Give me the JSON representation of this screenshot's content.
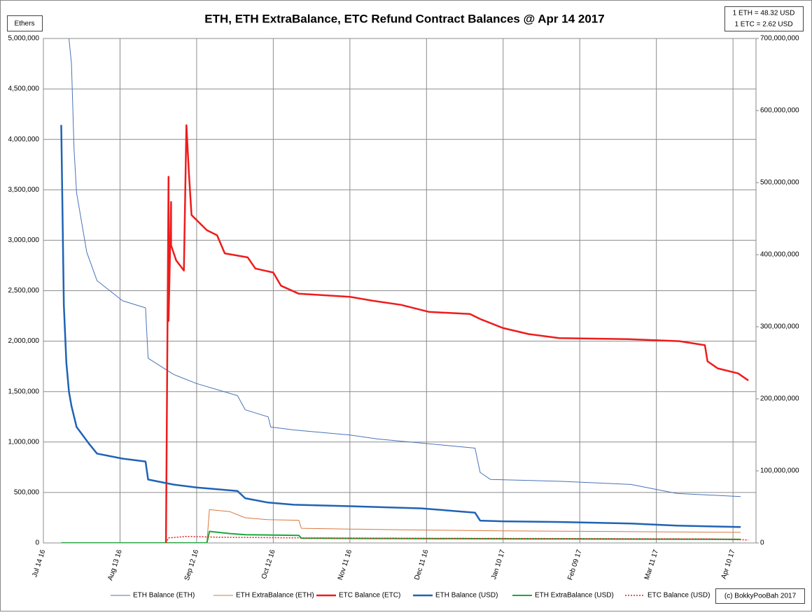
{
  "chart_data": {
    "type": "line",
    "title": "ETH, ETH ExtraBalance, ETC Refund Contract Balances @ Apr 14 2017",
    "y_label": "Ethers",
    "annotations": [
      "1 ETH = 48.32 USD",
      "1 ETC = 2.62 USD"
    ],
    "credit": "(c) BokkyPooBah 2017",
    "grid": true,
    "legend": "bottom",
    "xlim": [
      "2016-07-14",
      "2017-04-19"
    ],
    "xticks": [
      {
        "value": "2016-07-14",
        "label": "Jul 14 16"
      },
      {
        "value": "2016-08-13",
        "label": "Aug 13 16"
      },
      {
        "value": "2016-09-12",
        "label": "Sep 12 16"
      },
      {
        "value": "2016-10-12",
        "label": "Oct 12 16"
      },
      {
        "value": "2016-11-11",
        "label": "Nov 11 16"
      },
      {
        "value": "2016-12-11",
        "label": "Dec 11 16"
      },
      {
        "value": "2017-01-10",
        "label": "Jan 10 17"
      },
      {
        "value": "2017-02-09",
        "label": "Feb 09 17"
      },
      {
        "value": "2017-03-11",
        "label": "Mar 11 17"
      },
      {
        "value": "2017-04-10",
        "label": "Apr 10 17"
      }
    ],
    "ylim": [
      0,
      5000000
    ],
    "yticks": [
      0,
      {
        "value": 500000,
        "label": "500,000"
      },
      {
        "value": 1000000,
        "label": "1,000,000"
      },
      {
        "value": 1500000,
        "label": "1,500,000"
      },
      {
        "value": 2000000,
        "label": "2,000,000"
      },
      {
        "value": 2500000,
        "label": "2,500,000"
      },
      {
        "value": 3000000,
        "label": "3,000,000"
      },
      {
        "value": 3500000,
        "label": "3,500,000"
      },
      {
        "value": 4000000,
        "label": "4,000,000"
      },
      {
        "value": 4500000,
        "label": "4,500,000"
      },
      {
        "value": 5000000,
        "label": "5,000,000"
      }
    ],
    "y2lim": [
      0,
      700000000
    ],
    "y2ticks": [
      0,
      {
        "value": 100000000,
        "label": "100,000,000"
      },
      {
        "value": 200000000,
        "label": "200,000,000"
      },
      {
        "value": 300000000,
        "label": "300,000,000"
      },
      {
        "value": 400000000,
        "label": "400,000,000"
      },
      {
        "value": 500000000,
        "label": "500,000,000"
      },
      {
        "value": 600000000,
        "label": "600,000,000"
      },
      {
        "value": 700000000,
        "label": "700,000,000"
      }
    ],
    "series": [
      {
        "name": "ETH Balance (ETH)",
        "color": "#4a72b8",
        "line_width": 1,
        "linestyle": "solid",
        "axis": "y",
        "x": [
          "2016-07-24",
          "2016-07-25",
          "2016-07-26",
          "2016-07-27",
          "2016-07-31",
          "2016-08-04",
          "2016-08-14",
          "2016-08-23",
          "2016-08-24",
          "2016-09-03",
          "2016-09-12",
          "2016-09-28",
          "2016-10-01",
          "2016-10-10",
          "2016-10-11",
          "2016-10-20",
          "2016-11-11",
          "2016-11-22",
          "2016-12-09",
          "2016-12-30",
          "2017-01-01",
          "2017-01-05",
          "2017-02-02",
          "2017-03-01",
          "2017-03-19",
          "2017-04-13"
        ],
        "values": [
          5000000,
          4750000,
          3900000,
          3470000,
          2880000,
          2600000,
          2400000,
          2330000,
          1830000,
          1670000,
          1580000,
          1460000,
          1320000,
          1250000,
          1150000,
          1120000,
          1070000,
          1030000,
          990000,
          940000,
          700000,
          630000,
          610000,
          580000,
          490000,
          460000
        ]
      },
      {
        "name": "ETH ExtraBalance (ETH)",
        "color": "#d7783e",
        "line_width": 1,
        "linestyle": "solid",
        "axis": "y",
        "x": [
          "2016-07-21",
          "2016-09-16",
          "2016-09-17",
          "2016-09-25",
          "2016-10-01",
          "2016-10-10",
          "2016-10-22",
          "2016-10-23",
          "2016-12-01",
          "2017-01-10",
          "2017-02-09",
          "2017-03-11",
          "2017-04-13"
        ],
        "values": [
          0,
          0,
          330000,
          310000,
          250000,
          230000,
          225000,
          145000,
          130000,
          120000,
          115000,
          110000,
          105000
        ]
      },
      {
        "name": "ETC Balance (ETC)",
        "color": "#ee1c1c",
        "line_width": 2.5,
        "linestyle": "solid",
        "axis": "y",
        "x": [
          "2016-08-31",
          "2016-09-01",
          "2016-09-01",
          "2016-09-02",
          "2016-09-02",
          "2016-09-04",
          "2016-09-07",
          "2016-09-08",
          "2016-09-09",
          "2016-09-10",
          "2016-09-16",
          "2016-09-20",
          "2016-09-23",
          "2016-10-02",
          "2016-10-05",
          "2016-10-12",
          "2016-10-15",
          "2016-10-22",
          "2016-11-11",
          "2016-11-20",
          "2016-12-01",
          "2016-12-12",
          "2016-12-28",
          "2017-01-01",
          "2017-01-10",
          "2017-01-20",
          "2017-02-01",
          "2017-02-28",
          "2017-03-20",
          "2017-03-30",
          "2017-03-31",
          "2017-04-04",
          "2017-04-12",
          "2017-04-16"
        ],
        "values": [
          0,
          3630000,
          2200000,
          3380000,
          2950000,
          2800000,
          2700000,
          4140000,
          3650000,
          3250000,
          3100000,
          3050000,
          2870000,
          2830000,
          2720000,
          2680000,
          2550000,
          2470000,
          2440000,
          2400000,
          2360000,
          2290000,
          2270000,
          2220000,
          2130000,
          2070000,
          2030000,
          2020000,
          2000000,
          1960000,
          1800000,
          1730000,
          1680000,
          1610000
        ]
      },
      {
        "name": "ETH Balance (USD)",
        "color": "#1f63b5",
        "line_width": 2.5,
        "linestyle": "solid",
        "axis": "y2",
        "x": [
          "2016-07-21",
          "2016-07-22",
          "2016-07-23",
          "2016-07-24",
          "2016-07-25",
          "2016-07-27",
          "2016-08-01",
          "2016-08-04",
          "2016-08-14",
          "2016-08-23",
          "2016-08-24",
          "2016-09-03",
          "2016-09-12",
          "2016-09-28",
          "2016-10-01",
          "2016-10-10",
          "2016-10-20",
          "2016-11-11",
          "2016-12-09",
          "2016-12-30",
          "2017-01-01",
          "2017-01-10",
          "2017-02-02",
          "2017-03-01",
          "2017-03-19",
          "2017-04-13"
        ],
        "values": [
          580000000,
          330000000,
          250000000,
          210000000,
          190000000,
          161000000,
          137000000,
          124000000,
          117000000,
          113000000,
          88000000,
          81000000,
          77000000,
          72000000,
          62000000,
          56000000,
          53000000,
          51000000,
          48000000,
          42000000,
          31000000,
          30000000,
          29000000,
          27000000,
          24000000,
          22000000
        ]
      },
      {
        "name": "ETH ExtraBalance (USD)",
        "color": "#1aa83a",
        "line_width": 2,
        "linestyle": "solid",
        "axis": "y2",
        "x": [
          "2016-07-21",
          "2016-09-16",
          "2016-09-17",
          "2016-09-25",
          "2016-10-01",
          "2016-10-22",
          "2016-10-23",
          "2016-12-01",
          "2017-02-01",
          "2017-04-13"
        ],
        "values": [
          0,
          0,
          16000000,
          13000000,
          11500000,
          10500000,
          6500000,
          6000000,
          5500000,
          5000000
        ]
      },
      {
        "name": "ETC Balance (USD)",
        "color": "#e21b1b",
        "line_width": 1.5,
        "linestyle": "dotted",
        "axis": "y2",
        "x": [
          "2016-08-31",
          "2016-09-01",
          "2016-09-08",
          "2016-09-20",
          "2016-10-22",
          "2016-12-11",
          "2017-02-09",
          "2017-04-01",
          "2017-04-16"
        ],
        "values": [
          0,
          7000000,
          9000000,
          8000000,
          7000000,
          6500000,
          6000000,
          5500000,
          4200000
        ]
      }
    ]
  }
}
